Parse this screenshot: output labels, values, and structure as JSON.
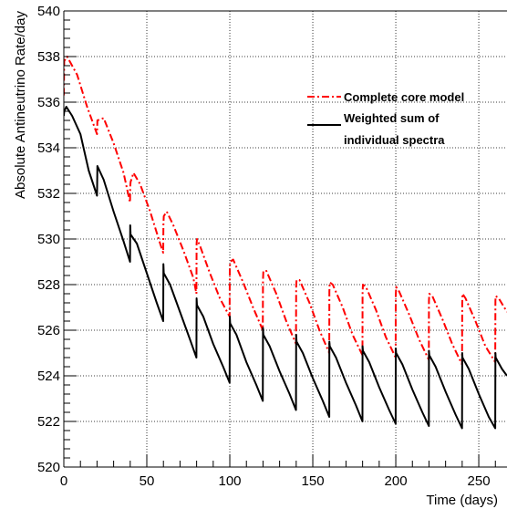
{
  "chart_data": {
    "type": "line",
    "xlabel": "Time (days)",
    "ylabel": "Absolute Antineutrino Rate/day",
    "xlim": [
      0,
      267
    ],
    "ylim": [
      520,
      540
    ],
    "xticks": [
      0,
      50,
      100,
      150,
      200,
      250
    ],
    "yticks": [
      520,
      522,
      524,
      526,
      528,
      530,
      532,
      534,
      536,
      538,
      540
    ],
    "grid": true,
    "legend_position": "top-right",
    "series": [
      {
        "name": "Complete core model",
        "color": "#ff0000",
        "style": "dash-dot",
        "x": [
          0,
          0.2,
          2,
          8,
          14,
          20,
          20.2,
          24,
          30,
          36,
          39.9,
          40,
          40.2,
          42,
          46,
          52,
          58,
          59.9,
          60,
          60.2,
          62,
          66,
          72,
          78,
          79.9,
          80,
          80.2,
          82,
          88,
          94,
          99.9,
          100,
          100.2,
          102,
          108,
          114,
          119.9,
          120,
          120.2,
          122,
          128,
          134,
          139.9,
          140,
          140.2,
          142,
          148,
          154,
          159.9,
          160,
          160.2,
          162,
          168,
          174,
          179.9,
          180,
          180.2,
          182,
          188,
          194,
          199.9,
          200,
          200.2,
          202,
          208,
          214,
          219.9,
          220,
          220.2,
          222,
          228,
          234,
          239.9,
          240,
          240.2,
          242,
          248,
          254,
          259.9,
          260,
          260.2,
          262,
          267
        ],
        "y": [
          536.3,
          537.8,
          538.0,
          537.2,
          535.8,
          534.6,
          535.2,
          535.3,
          534.2,
          532.9,
          531.6,
          532.3,
          532.5,
          532.9,
          532.4,
          531.2,
          529.8,
          529.4,
          530.6,
          531.0,
          531.2,
          530.6,
          529.5,
          528.3,
          527.6,
          529.8,
          530.0,
          529.7,
          528.5,
          527.4,
          526.6,
          528.7,
          529.0,
          529.1,
          528.1,
          527.0,
          526.0,
          528.2,
          528.6,
          528.6,
          527.6,
          526.4,
          525.4,
          527.9,
          528.2,
          528.2,
          527.2,
          526.0,
          525.0,
          527.7,
          528.1,
          528.0,
          527.0,
          525.8,
          524.9,
          527.6,
          528.0,
          527.9,
          526.9,
          525.7,
          524.8,
          527.5,
          527.9,
          527.7,
          526.7,
          525.6,
          524.7,
          527.3,
          527.6,
          527.5,
          526.5,
          525.4,
          524.5,
          527.2,
          527.6,
          527.4,
          526.4,
          525.3,
          524.6,
          527.3,
          527.5,
          527.4,
          526.8
        ]
      },
      {
        "name": "Weighted sum of\nindividual spectra",
        "color": "#000000",
        "style": "solid",
        "x": [
          0,
          0.2,
          1.5,
          5,
          10,
          15,
          20,
          20.2,
          24,
          30,
          36,
          39.9,
          40,
          40.2,
          44,
          50,
          56,
          59.9,
          60,
          60.2,
          64,
          70,
          76,
          79.9,
          80,
          80.2,
          84,
          90,
          96,
          99.9,
          100,
          100.2,
          104,
          110,
          116,
          119.9,
          120,
          120.2,
          124,
          130,
          136,
          139.9,
          140,
          140.2,
          144,
          150,
          156,
          159.9,
          160,
          160.2,
          164,
          170,
          176,
          179.9,
          180,
          180.2,
          184,
          190,
          196,
          199.9,
          200,
          200.2,
          204,
          210,
          216,
          219.9,
          220,
          220.2,
          224,
          230,
          236,
          239.9,
          240,
          240.2,
          244,
          250,
          256,
          259.9,
          260,
          260.2,
          264,
          267
        ],
        "y": [
          535.4,
          535.6,
          535.8,
          535.4,
          534.6,
          533.0,
          531.9,
          533.2,
          532.6,
          531.2,
          529.9,
          529.0,
          530.6,
          530.2,
          529.8,
          528.5,
          527.2,
          526.4,
          528.9,
          528.5,
          528.0,
          526.8,
          525.6,
          524.8,
          527.4,
          527.1,
          526.6,
          525.4,
          524.4,
          523.7,
          526.6,
          526.3,
          525.8,
          524.6,
          523.6,
          522.9,
          526.1,
          525.8,
          525.3,
          524.2,
          523.2,
          522.5,
          525.8,
          525.5,
          525.0,
          523.9,
          522.9,
          522.2,
          525.5,
          525.3,
          524.8,
          523.7,
          522.7,
          522.0,
          525.3,
          525.1,
          524.6,
          523.5,
          522.5,
          521.9,
          525.2,
          525.0,
          524.5,
          523.4,
          522.4,
          521.8,
          525.1,
          524.9,
          524.4,
          523.3,
          522.3,
          521.7,
          525.0,
          524.8,
          524.3,
          523.2,
          522.2,
          521.7,
          525.0,
          524.8,
          524.3,
          524.0
        ]
      }
    ]
  }
}
